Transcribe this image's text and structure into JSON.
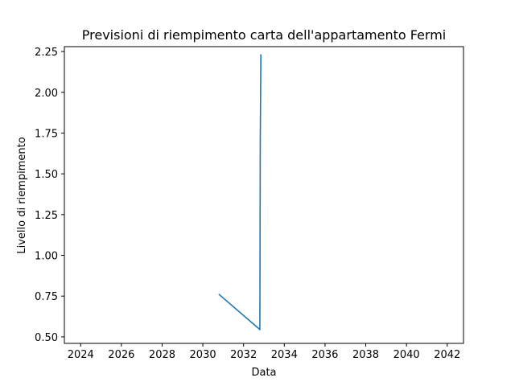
{
  "chart_data": {
    "type": "line",
    "title": "Previsioni di riempimento carta dell'appartamento Fermi",
    "xlabel": "Data",
    "ylabel": "Livello di riempimento",
    "x_tick_labels": [
      "2024",
      "2026",
      "2028",
      "2030",
      "2032",
      "2034",
      "2036",
      "2038",
      "2040",
      "2042"
    ],
    "y_tick_labels": [
      "0.50",
      "0.75",
      "1.00",
      "1.25",
      "1.50",
      "1.75",
      "2.00",
      "2.25"
    ],
    "xlim": [
      2023.2,
      2042.8
    ],
    "ylim": [
      0.46,
      2.28
    ],
    "grid": false,
    "series": [
      {
        "color": "#1f77b4",
        "points": [
          {
            "x": 2030.8,
            "y": 0.76
          },
          {
            "x": 2032.8,
            "y": 0.545
          },
          {
            "x": 2032.82,
            "y": 1.7
          },
          {
            "x": 2032.85,
            "y": 2.23
          }
        ]
      }
    ]
  }
}
